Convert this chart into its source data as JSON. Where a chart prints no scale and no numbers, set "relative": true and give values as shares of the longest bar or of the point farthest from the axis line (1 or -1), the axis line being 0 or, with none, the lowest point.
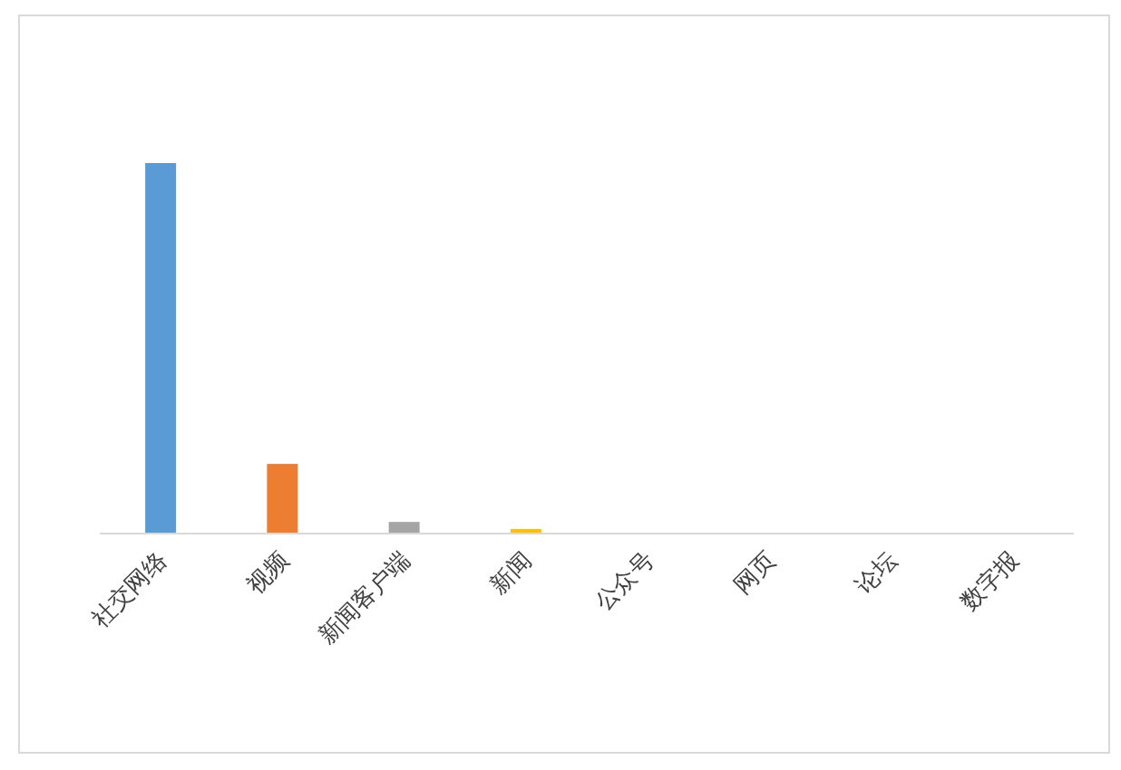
{
  "chart_data": {
    "type": "bar",
    "relative": true,
    "categories": [
      "社交网络",
      "视频",
      "新闻客户端",
      "新闻",
      "公众号",
      "网页",
      "论坛",
      "数字报"
    ],
    "values": [
      1,
      0.186,
      0.029,
      0.01,
      0,
      0,
      0,
      0
    ],
    "colors": [
      "#5b9bd5",
      "#ed7d31",
      "#a5a5a5",
      "#ffc000",
      "#4472c4",
      "#70ad47",
      "#264478",
      "#9e480e"
    ]
  }
}
